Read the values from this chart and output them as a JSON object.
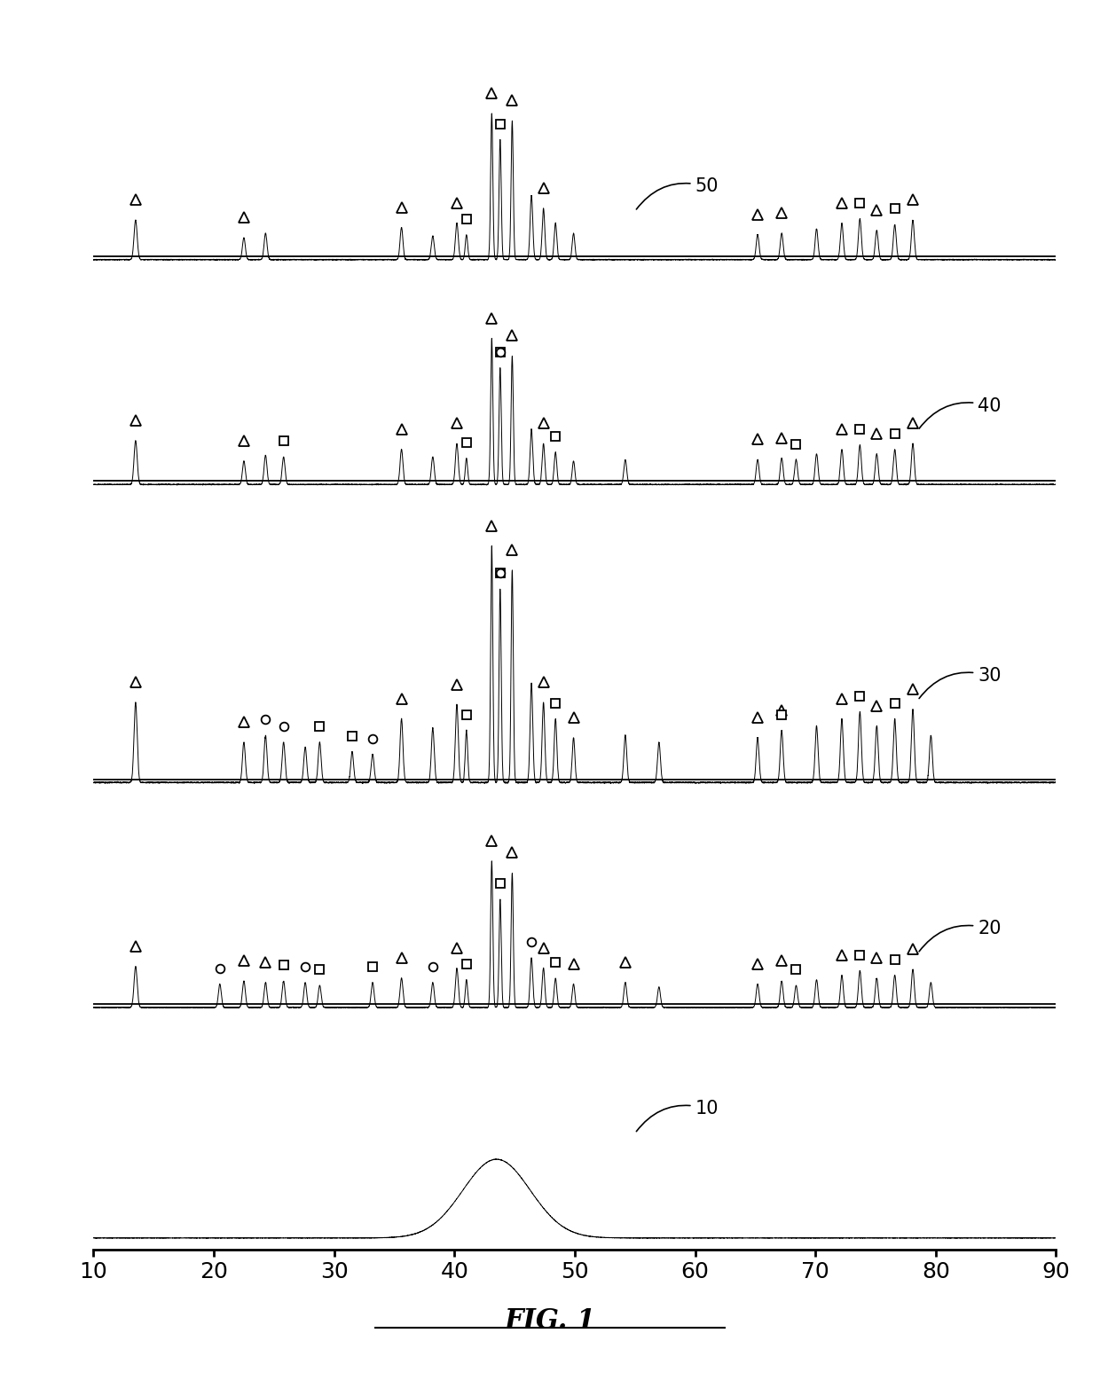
{
  "xlim": [
    10,
    90
  ],
  "xticks": [
    10,
    20,
    30,
    40,
    50,
    60,
    70,
    80,
    90
  ],
  "fig_label": "FIG. 1",
  "panel_baselines": [
    0.0,
    0.205,
    0.405,
    0.67,
    0.87
  ],
  "panel_scales": [
    0.07,
    0.13,
    0.21,
    0.13,
    0.13
  ],
  "label_configs": [
    [
      60.0,
      0.115,
      "10"
    ],
    [
      83.5,
      0.275,
      "20"
    ],
    [
      83.5,
      0.5,
      "30"
    ],
    [
      83.5,
      0.74,
      "40"
    ],
    [
      60.0,
      0.935,
      "50"
    ]
  ]
}
